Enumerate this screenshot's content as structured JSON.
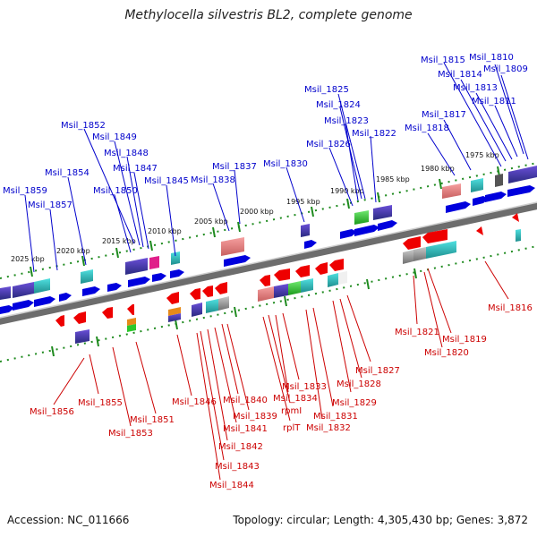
{
  "title": "Methylocella silvestris BL2, complete genome",
  "accession_text": "Accession: NC_011666",
  "summary_text": "Topology: circular; Length: 4,305,430 bp; Genes: 3,872",
  "colors": {
    "forward_label": "#0000cc",
    "reverse_label": "#cc0000",
    "forward_gene": "#0000dd",
    "reverse_gene": "#ee0000",
    "backbone": "#777777",
    "tick": "#1e8a1e"
  },
  "scale_ticks": [
    "1975 kbp",
    "1980 kbp",
    "1985 kbp",
    "1990 kbp",
    "1995 kbp",
    "2000 kbp",
    "2005 kbp",
    "2010 kbp",
    "2015 kbp",
    "2020 kbp",
    "2025 kbp"
  ],
  "forward_labels": [
    "Msil_1810",
    "Msil_1809",
    "Msil_1815",
    "Msil_1814",
    "Msil_1813",
    "Msil_1811",
    "Msil_1817",
    "Msil_1818",
    "Msil_1825",
    "Msil_1824",
    "Msil_1823",
    "Msil_1822",
    "Msil_1826",
    "Msil_1830",
    "Msil_1837",
    "Msil_1838",
    "Msil_1852",
    "Msil_1849",
    "Msil_1848",
    "Msil_1847",
    "Msil_1845",
    "Msil_1854",
    "Msil_1850",
    "Msil_1859",
    "Msil_1857"
  ],
  "reverse_labels": [
    "Msil_1816",
    "Msil_1821",
    "Msil_1819",
    "Msil_1820",
    "Msil_1827",
    "Msil_1828",
    "Msil_1829",
    "Msil_1831",
    "Msil_1832",
    "Msil_1833",
    "Msil_1834",
    "rpmI",
    "rplT",
    "Msil_1840",
    "Msil_1839",
    "Msil_1841",
    "Msil_1842",
    "Msil_1843",
    "Msil_1844",
    "Msil_1846",
    "Msil_1851",
    "Msil_1853",
    "Msil_1855",
    "Msil_1856"
  ]
}
